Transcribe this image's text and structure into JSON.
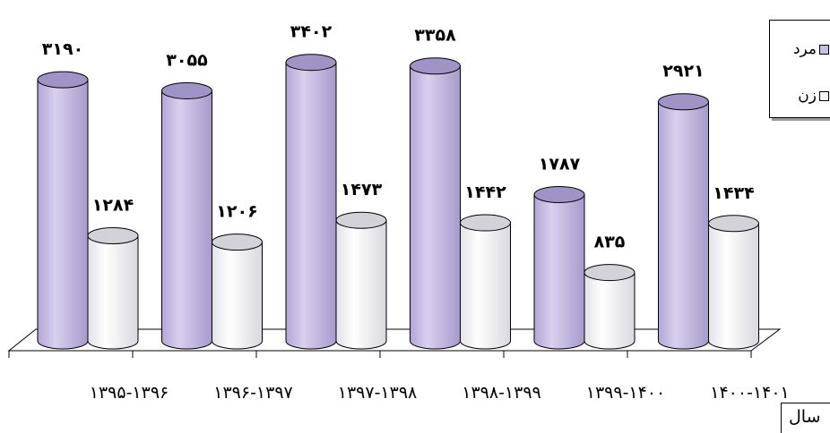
{
  "chart_data": {
    "type": "bar",
    "style": "3d-cylinder",
    "xlabel": "سال",
    "categories": [
      "۱۳۹۵-۱۳۹۶",
      "۱۳۹۶-۱۳۹۷",
      "۱۳۹۷-۱۳۹۸",
      "۱۳۹۸-۱۳۹۹",
      "۱۳۹۹-۱۴۰۰",
      "۱۴۰۰-۱۴۰۱"
    ],
    "series": [
      {
        "name": "مرد",
        "color": "#c8bde4",
        "values": [
          3190,
          3055,
          3402,
          3358,
          1787,
          2921
        ],
        "labels": [
          "۳۱۹۰",
          "۳۰۵۵",
          "۳۴۰۲",
          "۳۳۵۸",
          "۱۷۸۷",
          "۲۹۲۱"
        ]
      },
      {
        "name": "زن",
        "color": "#f4f4f6",
        "values": [
          1284,
          1206,
          1473,
          1442,
          835,
          1434
        ],
        "labels": [
          "۱۲۸۴",
          "۱۲۰۶",
          "۱۴۷۳",
          "۱۴۴۲",
          "۸۳۵",
          "۱۴۳۴"
        ]
      }
    ],
    "ylim": [
      0,
      3500
    ],
    "grid": false,
    "legend_position": "top-right"
  }
}
